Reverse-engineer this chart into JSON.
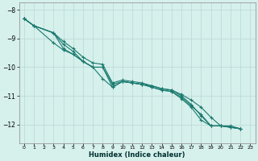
{
  "xlabel": "Humidex (Indice chaleur)",
  "ylabel": "",
  "bg_color": "#d6f0ec",
  "grid_color": "#b8d8d4",
  "line_color": "#1a7a6e",
  "xlim": [
    -0.5,
    23.5
  ],
  "ylim": [
    -12.65,
    -7.75
  ],
  "xticks": [
    0,
    1,
    2,
    3,
    4,
    5,
    6,
    7,
    8,
    9,
    10,
    11,
    12,
    13,
    14,
    15,
    16,
    17,
    18,
    19,
    20,
    21,
    22,
    23
  ],
  "yticks": [
    -8,
    -9,
    -10,
    -11,
    -12
  ],
  "lines": [
    {
      "points": [
        [
          0,
          -8.3
        ],
        [
          1,
          -8.55
        ],
        [
          3,
          -8.8
        ],
        [
          4,
          -9.1
        ],
        [
          5,
          -9.35
        ],
        [
          6,
          -9.65
        ],
        [
          7,
          -9.85
        ],
        [
          8,
          -9.9
        ],
        [
          9,
          -10.55
        ],
        [
          10,
          -10.45
        ],
        [
          11,
          -10.5
        ],
        [
          12,
          -10.55
        ],
        [
          13,
          -10.65
        ],
        [
          14,
          -10.75
        ],
        [
          15,
          -10.8
        ],
        [
          16,
          -10.95
        ],
        [
          17,
          -11.15
        ],
        [
          18,
          -11.4
        ],
        [
          19,
          -11.75
        ],
        [
          20,
          -12.05
        ],
        [
          21,
          -12.05
        ],
        [
          22,
          -12.15
        ]
      ]
    },
    {
      "points": [
        [
          0,
          -8.3
        ],
        [
          1,
          -8.55
        ],
        [
          3,
          -8.8
        ],
        [
          4,
          -9.2
        ],
        [
          5,
          -9.45
        ],
        [
          6,
          -9.8
        ],
        [
          7,
          -10.0
        ],
        [
          8,
          -10.4
        ],
        [
          9,
          -10.7
        ],
        [
          10,
          -10.5
        ],
        [
          11,
          -10.55
        ],
        [
          12,
          -10.6
        ],
        [
          13,
          -10.65
        ],
        [
          14,
          -10.75
        ],
        [
          15,
          -10.8
        ],
        [
          16,
          -11.0
        ],
        [
          17,
          -11.3
        ],
        [
          18,
          -11.7
        ],
        [
          19,
          -12.05
        ],
        [
          20,
          -12.05
        ],
        [
          21,
          -12.1
        ],
        [
          22,
          -12.15
        ]
      ]
    },
    {
      "points": [
        [
          0,
          -8.3
        ],
        [
          1,
          -8.55
        ],
        [
          3,
          -8.8
        ],
        [
          4,
          -9.35
        ],
        [
          5,
          -9.55
        ],
        [
          6,
          -9.8
        ],
        [
          7,
          -10.0
        ],
        [
          8,
          -10.0
        ],
        [
          9,
          -10.6
        ],
        [
          10,
          -10.5
        ],
        [
          11,
          -10.55
        ],
        [
          12,
          -10.6
        ],
        [
          13,
          -10.7
        ],
        [
          14,
          -10.8
        ],
        [
          15,
          -10.85
        ],
        [
          16,
          -11.05
        ],
        [
          17,
          -11.35
        ],
        [
          18,
          -11.65
        ],
        [
          19,
          -12.05
        ],
        [
          20,
          -12.05
        ],
        [
          21,
          -12.1
        ],
        [
          22,
          -12.15
        ]
      ]
    },
    {
      "points": [
        [
          0,
          -8.3
        ],
        [
          1,
          -8.55
        ],
        [
          3,
          -9.15
        ],
        [
          4,
          -9.4
        ],
        [
          5,
          -9.55
        ],
        [
          6,
          -9.8
        ],
        [
          7,
          -10.0
        ],
        [
          8,
          -10.0
        ],
        [
          9,
          -10.7
        ],
        [
          10,
          -10.5
        ],
        [
          11,
          -10.55
        ],
        [
          12,
          -10.6
        ],
        [
          13,
          -10.7
        ],
        [
          14,
          -10.8
        ],
        [
          15,
          -10.85
        ],
        [
          16,
          -11.1
        ],
        [
          17,
          -11.4
        ],
        [
          18,
          -11.85
        ],
        [
          19,
          -12.05
        ],
        [
          20,
          -12.05
        ],
        [
          21,
          -12.1
        ],
        [
          22,
          -12.15
        ]
      ]
    }
  ]
}
